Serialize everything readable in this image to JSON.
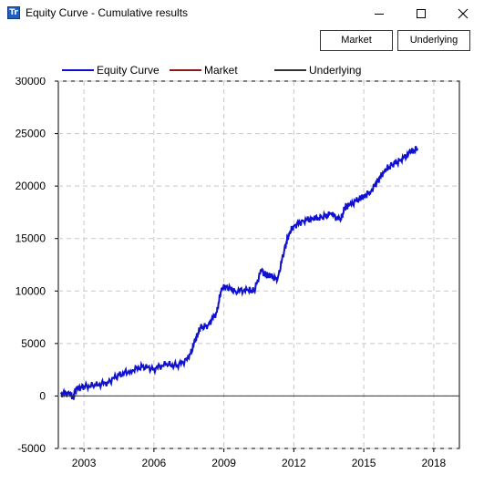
{
  "window": {
    "title": "Equity Curve - Cumulative results",
    "icon_text": "Tr"
  },
  "toolbar": {
    "market_label": "Market",
    "underlying_label": "Underlying"
  },
  "legend": [
    {
      "label": "Equity Curve",
      "color": "#1010d0"
    },
    {
      "label": "Market",
      "color": "#8b1a1a"
    },
    {
      "label": "Underlying",
      "color": "#333333"
    }
  ],
  "chart_data": {
    "type": "line",
    "title": "",
    "xlabel": "",
    "ylabel": "",
    "xlim": [
      2001.9,
      2019.1
    ],
    "ylim": [
      -5000,
      30000
    ],
    "x_ticks": [
      2003,
      2006,
      2009,
      2012,
      2015,
      2018
    ],
    "y_ticks": [
      -5000,
      0,
      5000,
      10000,
      15000,
      20000,
      25000,
      30000
    ],
    "grid": true,
    "series": [
      {
        "name": "Equity Curve",
        "color": "#1010d0",
        "x": [
          2002.0,
          2002.4,
          2002.55,
          2002.6,
          2002.7,
          2003.0,
          2003.5,
          2004.0,
          2004.5,
          2005.0,
          2005.5,
          2006.0,
          2006.5,
          2007.0,
          2007.5,
          2007.8,
          2008.0,
          2008.3,
          2008.7,
          2008.9,
          2009.1,
          2009.5,
          2010.0,
          2010.3,
          2010.6,
          2010.8,
          2011.0,
          2011.3,
          2011.6,
          2011.8,
          2012.0,
          2012.4,
          2012.8,
          2013.2,
          2013.6,
          2014.0,
          2014.2,
          2014.4,
          2014.8,
          2015.0,
          2015.3,
          2015.6,
          2015.9,
          2016.2,
          2016.6,
          2017.0,
          2017.3
        ],
        "values": [
          200,
          300,
          -300,
          400,
          700,
          900,
          1000,
          1300,
          2000,
          2400,
          2800,
          2600,
          3000,
          2900,
          3600,
          5500,
          6500,
          6700,
          8000,
          10300,
          10400,
          10000,
          10100,
          10000,
          12000,
          11500,
          11400,
          11100,
          14000,
          15500,
          16200,
          16700,
          16900,
          17000,
          17400,
          16700,
          18000,
          18200,
          18800,
          19000,
          19500,
          20500,
          21500,
          22000,
          22500,
          23200,
          23600
        ]
      },
      {
        "name": "Underlying",
        "color": "#333333",
        "x": [
          2002.0,
          2019.1
        ],
        "values": [
          0,
          0
        ]
      }
    ]
  }
}
